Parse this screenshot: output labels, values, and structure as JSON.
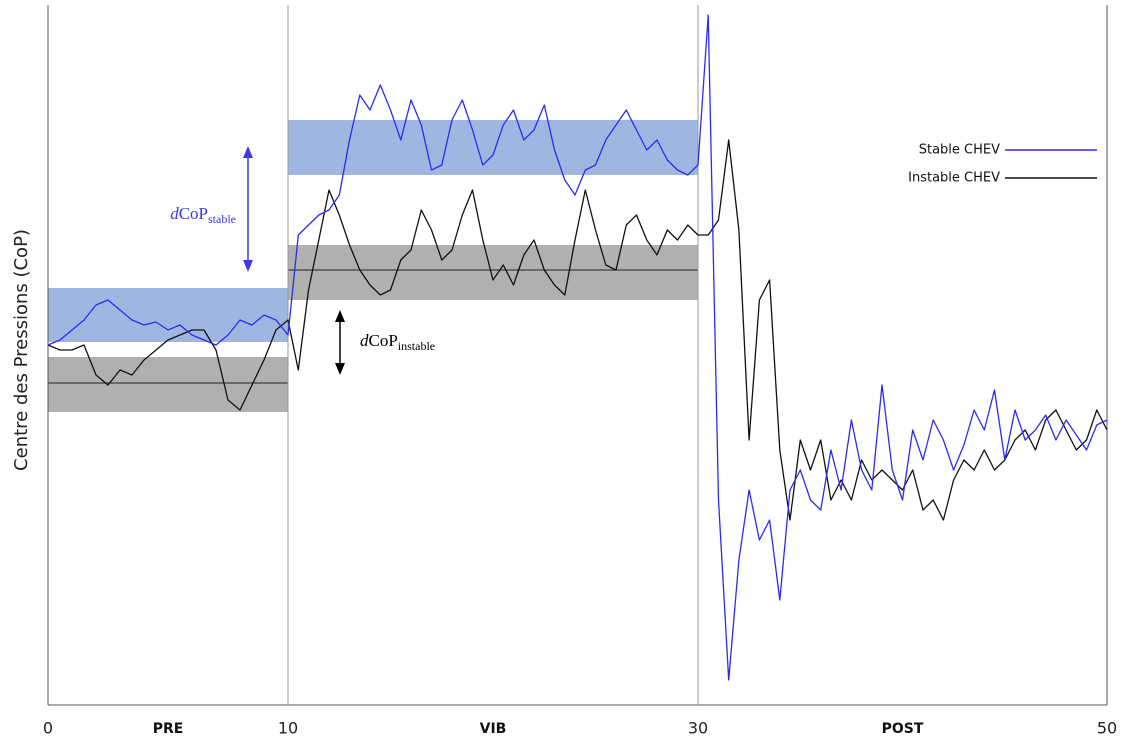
{
  "chart_data": {
    "type": "line",
    "y_label": "Centre des Pressions (CoP)",
    "x": [
      0,
      0.5,
      1,
      1.5,
      2,
      2.5,
      3,
      3.5,
      4,
      4.5,
      5,
      5.5,
      6,
      6.5,
      7,
      7.5,
      8,
      8.5,
      9,
      9.5,
      10,
      10.5,
      11,
      11.5,
      12,
      12.5,
      13,
      13.5,
      14,
      14.5,
      15,
      15.5,
      16,
      16.5,
      17,
      17.5,
      18,
      18.5,
      19,
      19.5,
      20,
      20.5,
      21,
      21.5,
      22,
      22.5,
      23,
      23.5,
      24,
      24.5,
      25,
      25.5,
      26,
      26.5,
      27,
      27.5,
      28,
      28.5,
      29,
      29.5,
      30,
      30.5,
      31,
      31.5,
      32,
      32.5,
      33,
      33.5,
      34,
      34.5,
      35,
      35.5,
      36,
      36.5,
      37,
      37.5,
      38,
      38.5,
      39,
      39.5,
      40,
      40.5,
      41,
      41.5,
      42,
      42.5,
      43,
      43.5,
      44,
      44.5,
      45,
      45.5,
      46,
      46.5,
      47,
      47.5,
      48,
      48.5,
      49,
      49.5,
      50
    ],
    "series": [
      {
        "name": "Stable CHEV",
        "color": "#2b2bef",
        "values": [
          360,
          365,
          375,
          385,
          400,
          405,
          395,
          385,
          380,
          383,
          375,
          380,
          370,
          365,
          360,
          370,
          385,
          380,
          390,
          385,
          370,
          470,
          480,
          490,
          495,
          510,
          565,
          610,
          595,
          620,
          595,
          565,
          605,
          580,
          535,
          540,
          585,
          605,
          575,
          540,
          550,
          580,
          595,
          565,
          575,
          600,
          555,
          525,
          510,
          535,
          540,
          565,
          580,
          595,
          575,
          555,
          565,
          545,
          535,
          530,
          540,
          690,
          205,
          25,
          145,
          215,
          165,
          185,
          105,
          215,
          235,
          205,
          195,
          255,
          215,
          285,
          235,
          215,
          320,
          235,
          205,
          275,
          245,
          285,
          265,
          235,
          260,
          295,
          275,
          315,
          245,
          295,
          265,
          275,
          290,
          265,
          285,
          270,
          255,
          280,
          285
        ]
      },
      {
        "name": "Instable CHEV",
        "color": "#111111",
        "values": [
          360,
          355,
          355,
          360,
          330,
          320,
          335,
          330,
          345,
          355,
          365,
          370,
          375,
          375,
          355,
          305,
          295,
          320,
          345,
          375,
          385,
          335,
          415,
          465,
          515,
          490,
          460,
          435,
          420,
          410,
          415,
          445,
          455,
          495,
          475,
          445,
          455,
          490,
          515,
          465,
          425,
          440,
          420,
          450,
          465,
          435,
          420,
          410,
          465,
          515,
          475,
          440,
          435,
          480,
          490,
          465,
          450,
          475,
          465,
          480,
          470,
          470,
          485,
          565,
          475,
          265,
          405,
          425,
          255,
          185,
          265,
          235,
          265,
          205,
          225,
          205,
          245,
          225,
          235,
          225,
          215,
          235,
          195,
          205,
          185,
          225,
          245,
          235,
          255,
          235,
          245,
          265,
          275,
          255,
          285,
          295,
          275,
          255,
          265,
          295,
          275
        ]
      }
    ],
    "bands": [
      {
        "x": [
          0,
          10
        ],
        "y": [
          363,
          417
        ],
        "color": "#9fb7e0"
      },
      {
        "x": [
          10,
          30
        ],
        "y": [
          530,
          585
        ],
        "color": "#9fb7e0"
      },
      {
        "x": [
          0,
          10
        ],
        "y": [
          293,
          348
        ],
        "mean": 322,
        "color": "#b0b0b0"
      },
      {
        "x": [
          10,
          30
        ],
        "y": [
          405,
          460
        ],
        "mean": 435,
        "color": "#b0b0b0"
      }
    ],
    "annotations": [
      {
        "italic": "d",
        "text": "CoP",
        "sub": "stable",
        "color": "#3a3ae6"
      },
      {
        "italic": "d",
        "text": "CoP",
        "sub": "instable",
        "color": "#000000"
      }
    ],
    "phase_labels": [
      "PRE",
      "VIB",
      "POST"
    ],
    "xlim": [
      0,
      50
    ],
    "xticks": [
      0,
      10,
      30,
      50
    ],
    "ylim": [
      0,
      700
    ],
    "grid": true
  }
}
